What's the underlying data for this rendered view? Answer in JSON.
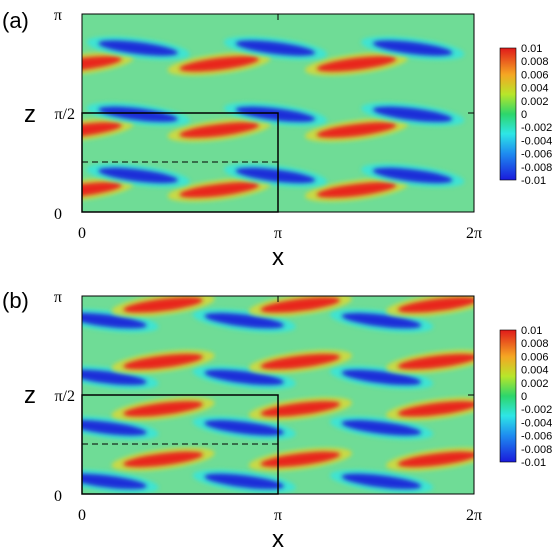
{
  "chart_data": [
    {
      "type": "heatmap",
      "panel_label": "(a)",
      "xlabel": "x",
      "ylabel": "z",
      "xlim": [
        0,
        6.2832
      ],
      "ylim": [
        0,
        3.1416
      ],
      "x_ticks": [
        {
          "value": 0,
          "label": "0"
        },
        {
          "value": 3.1416,
          "label": "π"
        },
        {
          "value": 6.2832,
          "label": "2π"
        }
      ],
      "y_ticks": [
        {
          "value": 0,
          "label": "0"
        },
        {
          "value": 1.5708,
          "label": "π/2"
        },
        {
          "value": 3.1416,
          "label": "π"
        }
      ],
      "colorbar": {
        "min": -0.01,
        "max": 0.01,
        "labels": [
          "0.01",
          "0.008",
          "0.006",
          "0.004",
          "0.002",
          "0",
          "-0.002",
          "-0.004",
          "-0.006",
          "-0.008",
          "-0.01"
        ]
      },
      "streak_rows_z": [
        0.35,
        0.58,
        1.3,
        1.55,
        2.35,
        2.6
      ],
      "box": {
        "x": [
          0,
          3.1416
        ],
        "z": [
          0,
          1.5708
        ]
      },
      "dashed_line_z": 0.785
    },
    {
      "type": "heatmap",
      "panel_label": "(b)",
      "xlabel": "x",
      "ylabel": "z",
      "xlim": [
        0,
        6.2832
      ],
      "ylim": [
        0,
        3.1416
      ],
      "x_ticks": [
        {
          "value": 0,
          "label": "0"
        },
        {
          "value": 3.1416,
          "label": "π"
        },
        {
          "value": 6.2832,
          "label": "2π"
        }
      ],
      "y_ticks": [
        {
          "value": 0,
          "label": "0"
        },
        {
          "value": 1.5708,
          "label": "π/2"
        },
        {
          "value": 3.1416,
          "label": "π"
        }
      ],
      "colorbar": {
        "min": -0.01,
        "max": 0.01,
        "labels": [
          "0.01",
          "0.008",
          "0.006",
          "0.004",
          "0.002",
          "0",
          "-0.002",
          "-0.004",
          "-0.006",
          "-0.008",
          "-0.01"
        ]
      },
      "streak_rows_z": [
        0.2,
        0.55,
        1.05,
        1.35,
        1.85,
        2.1,
        2.75,
        3.0
      ],
      "box": {
        "x": [
          0,
          3.1416
        ],
        "z": [
          0,
          1.5708
        ]
      },
      "dashed_line_z": 0.785
    }
  ],
  "colors": {
    "background_field": "#1fd36b",
    "positive": "#e8261a",
    "negative": "#1a2fd8"
  }
}
